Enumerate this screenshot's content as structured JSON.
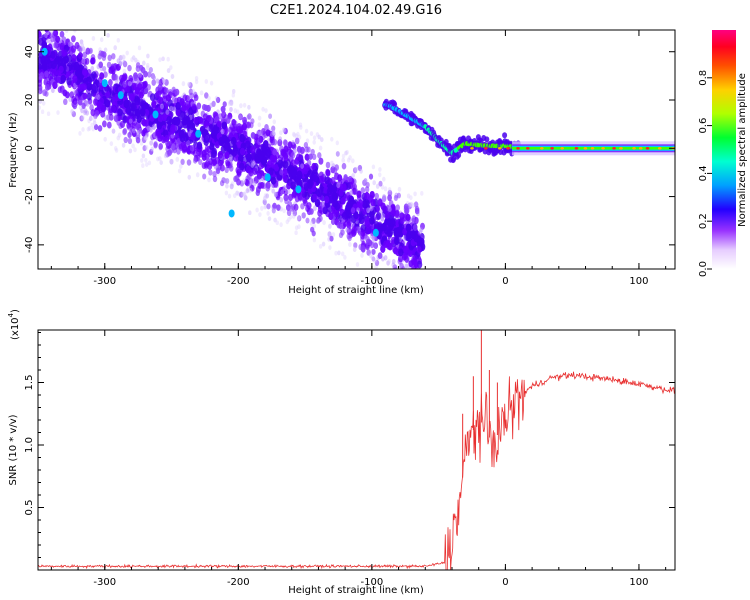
{
  "title": "C2E1.2024.104.02.49.G16",
  "chart_data": [
    {
      "type": "heatmap",
      "xlabel": "Height of straight line (km)",
      "ylabel": "Frequency (Hz)",
      "xlim": [
        -350,
        127
      ],
      "ylim": [
        -50,
        49
      ],
      "x_ticks": [
        -300,
        -200,
        -100,
        0,
        100
      ],
      "y_ticks": [
        -40,
        -20,
        0,
        20,
        40
      ],
      "colorbar": {
        "label": "Normalized spectral amplitude",
        "range": [
          0,
          1
        ],
        "ticks": [
          0.0,
          0.2,
          0.4,
          0.6,
          0.8
        ]
      },
      "features": {
        "scatter_region_x": [
          -350,
          -62
        ],
        "descending_trend": [
          {
            "x": -345,
            "y": 38
          },
          {
            "x": -300,
            "y": 24
          },
          {
            "x": -260,
            "y": 14
          },
          {
            "x": -230,
            "y": 7
          },
          {
            "x": -200,
            "y": 0
          },
          {
            "x": -170,
            "y": -8
          },
          {
            "x": -140,
            "y": -16
          },
          {
            "x": -110,
            "y": -26
          },
          {
            "x": -85,
            "y": -34
          },
          {
            "x": -68,
            "y": -40
          }
        ],
        "converging_ridge": [
          {
            "x": -88,
            "y": 18
          },
          {
            "x": -72,
            "y": 13
          },
          {
            "x": -60,
            "y": 9
          },
          {
            "x": -50,
            "y": 3
          },
          {
            "x": -40,
            "y": -2
          },
          {
            "x": -30,
            "y": 2
          },
          {
            "x": -15,
            "y": 1
          },
          {
            "x": 0,
            "y": 1
          },
          {
            "x": 10,
            "y": 0
          },
          {
            "x": 127,
            "y": 0
          }
        ],
        "stable_tone_x": [
          5,
          127
        ],
        "stable_tone_y": 0
      }
    },
    {
      "type": "line",
      "xlabel": "Height of straight line (km)",
      "ylabel": "SNR (10 * v/v)",
      "y_scale_label": "(x10",
      "y_scale_exp": "4",
      "y_scale_close": ")",
      "xlim": [
        -350,
        127
      ],
      "ylim": [
        0,
        19200
      ],
      "x_ticks": [
        -300,
        -200,
        -100,
        0,
        100
      ],
      "y_ticks": [
        5000,
        10000,
        15000
      ],
      "y_tick_labels": [
        "0.5",
        "1.0",
        "1.5"
      ],
      "series": [
        {
          "color": "#e83030",
          "points": [
            {
              "x": -350,
              "y": 300
            },
            {
              "x": -200,
              "y": 300
            },
            {
              "x": -60,
              "y": 300
            },
            {
              "x": -45,
              "y": 600
            },
            {
              "x": -40,
              "y": 2500
            },
            {
              "x": -35,
              "y": 5000
            },
            {
              "x": -30,
              "y": 9000
            },
            {
              "x": -25,
              "y": 11000
            },
            {
              "x": -20,
              "y": 12000
            },
            {
              "x": -15,
              "y": 11500
            },
            {
              "x": -10,
              "y": 10000
            },
            {
              "x": -5,
              "y": 11000
            },
            {
              "x": 0,
              "y": 12000
            },
            {
              "x": 5,
              "y": 13000
            },
            {
              "x": 10,
              "y": 13800
            },
            {
              "x": 20,
              "y": 14700
            },
            {
              "x": 35,
              "y": 15400
            },
            {
              "x": 50,
              "y": 15600
            },
            {
              "x": 75,
              "y": 15300
            },
            {
              "x": 100,
              "y": 14900
            },
            {
              "x": 127,
              "y": 14300
            }
          ],
          "spikes": [
            {
              "x": -18,
              "y": 19200
            },
            {
              "x": -24,
              "y": 15500
            },
            {
              "x": -12,
              "y": 16000
            },
            {
              "x": -32,
              "y": 12500
            },
            {
              "x": -6,
              "y": 15000
            }
          ]
        }
      ]
    }
  ]
}
